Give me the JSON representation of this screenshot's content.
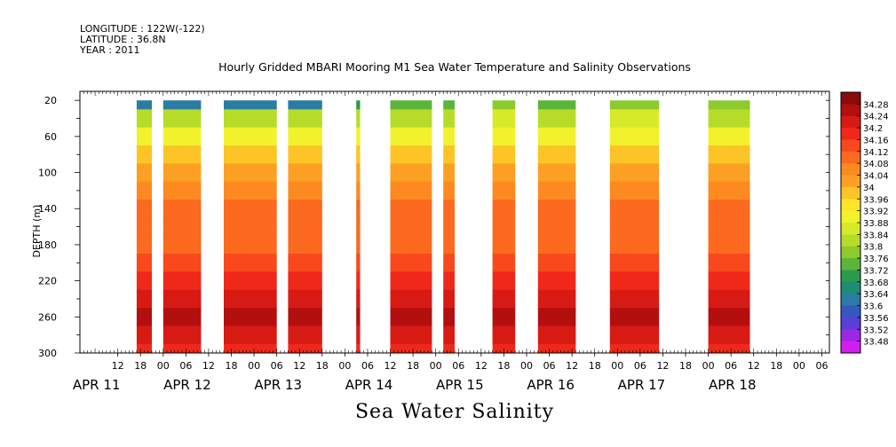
{
  "header": {
    "longitude": "LONGITUDE : 122W(-122)",
    "latitude": "LATITUDE : 36.8N",
    "year": "YEAR : 2011"
  },
  "chart_title": "Hourly Gridded MBARI Mooring M1 Sea Water Temperature and Salinity Observations",
  "bottom_label": "Sea Water Salinity",
  "chart_data": {
    "type": "heatmap",
    "title": "Hourly Gridded MBARI Mooring M1 Sea Water Temperature and Salinity Observations",
    "xlabel": "",
    "ylabel": "DEPTH (m)",
    "variable": "Sea Water Salinity",
    "y_reversed": true,
    "ylim": [
      300,
      10
    ],
    "y_ticks": [
      20,
      60,
      100,
      140,
      180,
      220,
      260,
      300
    ],
    "x_hour_ticks": [
      "12",
      "18",
      "00",
      "06",
      "12",
      "18",
      "00",
      "06",
      "12",
      "18",
      "00",
      "06",
      "12",
      "18",
      "00",
      "06",
      "12",
      "18",
      "00",
      "06",
      "12",
      "18",
      "00",
      "06",
      "12",
      "18",
      "00",
      "06",
      "12",
      "18",
      "00",
      "06"
    ],
    "x_day_labels": [
      "APR 11",
      "APR 12",
      "APR 13",
      "APR 14",
      "APR 15",
      "APR 16",
      "APR 17",
      "APR 18"
    ],
    "colorbar_levels": [
      "34.28",
      "34.24",
      "34.2",
      "34.16",
      "34.12",
      "34.08",
      "34.04",
      "34",
      "33.96",
      "33.92",
      "33.88",
      "33.84",
      "33.8",
      "33.76",
      "33.72",
      "33.68",
      "33.64",
      "33.6",
      "33.56",
      "33.52",
      "33.48"
    ],
    "colorbar_colors": [
      "#8b0a0a",
      "#b30f0f",
      "#d81a14",
      "#f0281a",
      "#f8481c",
      "#fb6a1e",
      "#fd8a20",
      "#fca024",
      "#fcc426",
      "#fce42a",
      "#f2f22c",
      "#d6ea2a",
      "#b6dc2a",
      "#8cca2e",
      "#5cb43a",
      "#2c9a4c",
      "#1f8c74",
      "#2a7ca2",
      "#3558c0",
      "#5a3ed6",
      "#9a28e4",
      "#d01ef0"
    ],
    "data_segments": [
      {
        "start": "APR 11 17:00",
        "end": "APR 11 21:00",
        "surface_min": 33.6
      },
      {
        "start": "APR 12 00:00",
        "end": "APR 12 10:00",
        "surface_min": 33.6
      },
      {
        "start": "APR 12 16:00",
        "end": "APR 13 06:00",
        "surface_min": 33.6
      },
      {
        "start": "APR 13 09:00",
        "end": "APR 13 18:00",
        "surface_min": 33.6
      },
      {
        "start": "APR 14 03:00",
        "end": "APR 14 04:00",
        "surface_min": 33.7
      },
      {
        "start": "APR 14 12:00",
        "end": "APR 14 23:00",
        "surface_min": 33.72
      },
      {
        "start": "APR 15 02:00",
        "end": "APR 15 05:00",
        "surface_min": 33.72
      },
      {
        "start": "APR 15 15:00",
        "end": "APR 15 21:00",
        "surface_min": 33.78
      },
      {
        "start": "APR 16 03:00",
        "end": "APR 16 13:00",
        "surface_min": 33.74
      },
      {
        "start": "APR 16 22:00",
        "end": "APR 17 11:00",
        "surface_min": 33.78
      },
      {
        "start": "APR 18 00:00",
        "end": "APR 18 11:00",
        "surface_min": 33.76
      }
    ],
    "vertical_profile": [
      {
        "depth": 20,
        "salinity": 33.66
      },
      {
        "depth": 40,
        "salinity": 33.8
      },
      {
        "depth": 60,
        "salinity": 33.9
      },
      {
        "depth": 80,
        "salinity": 33.98
      },
      {
        "depth": 100,
        "salinity": 34.02
      },
      {
        "depth": 120,
        "salinity": 34.05
      },
      {
        "depth": 140,
        "salinity": 34.08
      },
      {
        "depth": 160,
        "salinity": 34.1
      },
      {
        "depth": 180,
        "salinity": 34.11
      },
      {
        "depth": 200,
        "salinity": 34.13
      },
      {
        "depth": 220,
        "salinity": 34.17
      },
      {
        "depth": 240,
        "salinity": 34.22
      },
      {
        "depth": 260,
        "salinity": 34.25
      },
      {
        "depth": 280,
        "salinity": 34.2
      },
      {
        "depth": 300,
        "salinity": 34.17
      }
    ]
  }
}
